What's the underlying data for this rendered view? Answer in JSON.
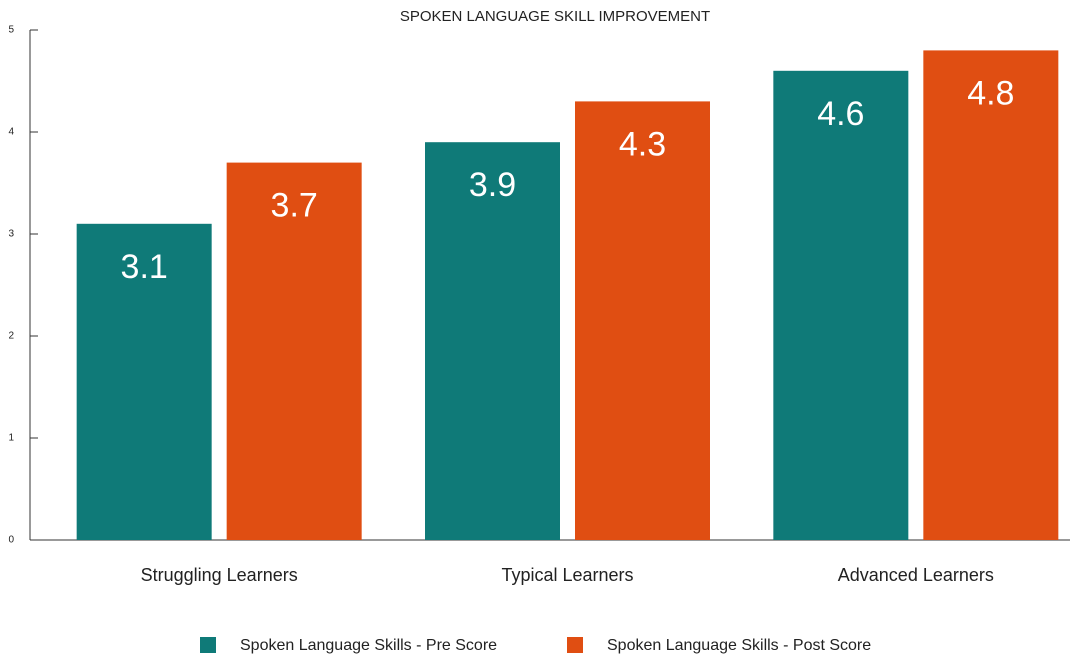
{
  "chart_data": {
    "type": "bar",
    "title": "SPOKEN LANGUAGE SKILL IMPROVEMENT",
    "categories": [
      "Struggling Learners",
      "Typical Learners",
      "Advanced Learners"
    ],
    "series": [
      {
        "name": "Spoken Language Skills - Pre Score",
        "color": "#0f7a78",
        "values": [
          3.1,
          3.9,
          4.6
        ]
      },
      {
        "name": "Spoken Language Skills - Post Score",
        "color": "#e04e12",
        "values": [
          3.7,
          4.3,
          4.8
        ]
      }
    ],
    "ylim": [
      0,
      5
    ],
    "yticks": [
      0,
      1,
      2,
      3,
      4,
      5
    ],
    "legend": "bottom"
  }
}
